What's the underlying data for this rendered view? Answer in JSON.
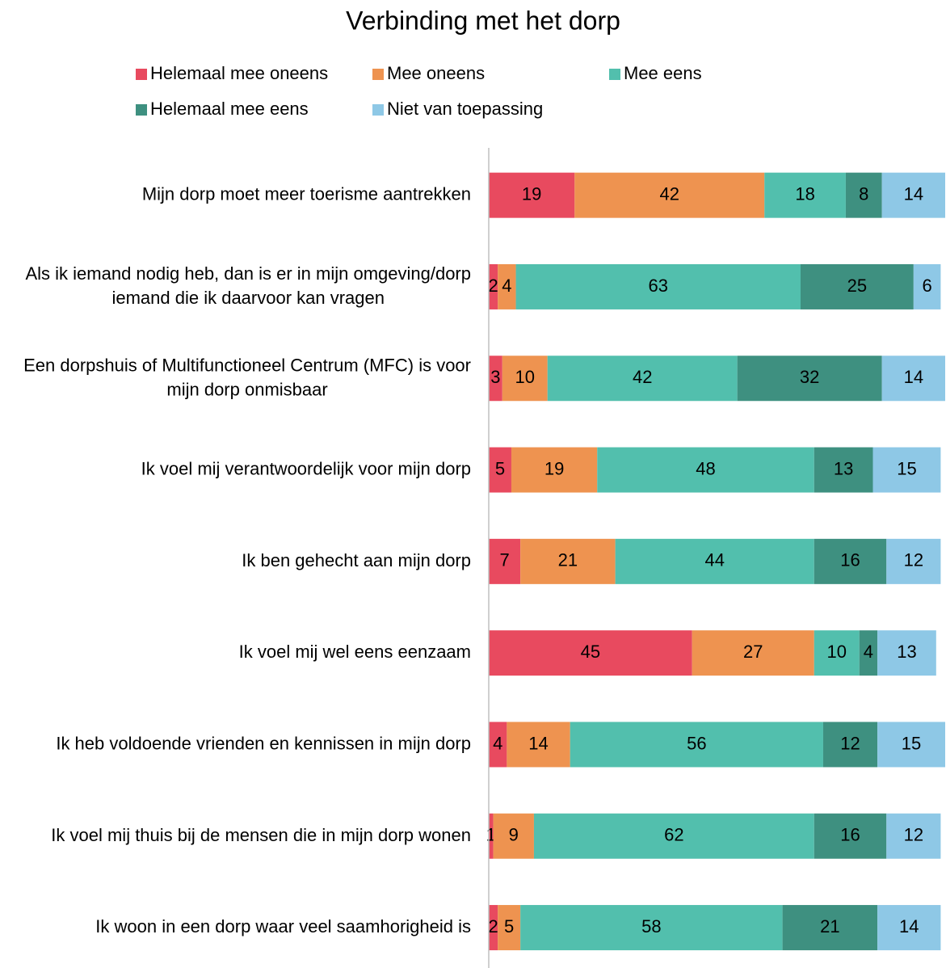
{
  "chart_data": {
    "type": "stacked-bar-horizontal",
    "title": "Verbinding met het dorp",
    "categories": [
      "Mijn dorp moet meer toerisme aantrekken",
      "Als ik iemand nodig heb, dan is er in mijn omgeving/dorp iemand die ik daarvoor kan vragen",
      "Een dorpshuis of Multifunctioneel Centrum (MFC) is voor mijn dorp onmisbaar",
      "Ik voel mij verantwoordelijk voor mijn dorp",
      "Ik ben gehecht aan mijn dorp",
      "Ik voel mij wel eens eenzaam",
      "Ik heb voldoende vrienden en kennissen in mijn dorp",
      "Ik voel mij thuis bij de mensen die in mijn dorp wonen",
      "Ik woon in een dorp waar veel saamhorigheid is"
    ],
    "series": [
      {
        "name": "Helemaal mee oneens",
        "color": "#e84a5f",
        "values": [
          19,
          2,
          3,
          5,
          7,
          45,
          4,
          1,
          2
        ]
      },
      {
        "name": "Mee oneens",
        "color": "#ee9350",
        "values": [
          42,
          4,
          10,
          19,
          21,
          27,
          14,
          9,
          5
        ]
      },
      {
        "name": "Mee eens",
        "color": "#52bfad",
        "values": [
          18,
          63,
          42,
          48,
          44,
          10,
          56,
          62,
          58
        ]
      },
      {
        "name": "Helemaal mee eens",
        "color": "#3e9080",
        "values": [
          8,
          25,
          32,
          13,
          16,
          4,
          12,
          16,
          21
        ]
      },
      {
        "name": "Niet van toepassing",
        "color": "#8ec8e6",
        "values": [
          14,
          6,
          14,
          15,
          12,
          13,
          15,
          12,
          14
        ]
      }
    ],
    "legend": "top"
  }
}
